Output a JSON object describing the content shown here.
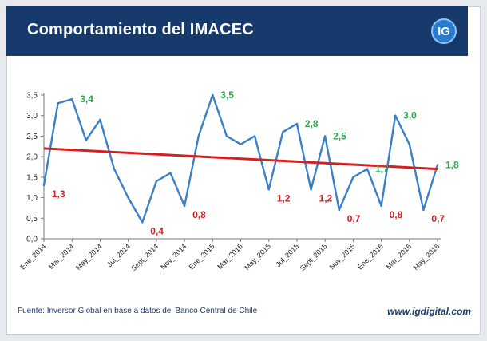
{
  "header": {
    "title": "Comportamiento del IMACEC",
    "logo_text": "IG"
  },
  "footer": {
    "source": "Fuente: Inversor Global en base a datos del Banco Central de Chile",
    "url": "www.igdigital.com"
  },
  "colors": {
    "line": "#3a80c8",
    "trend": "#d42020",
    "label_high": "#2aa84a",
    "label_low": "#d42020"
  },
  "chart_data": {
    "type": "line",
    "ylim": [
      0,
      3.5
    ],
    "yticks": [
      "0,0",
      "0,5",
      "1,0",
      "1,5",
      "2,0",
      "2,5",
      "3,0",
      "3,5"
    ],
    "xticks": [
      {
        "i": 0,
        "label": "Ene_2014"
      },
      {
        "i": 2,
        "label": "Mar_2014"
      },
      {
        "i": 4,
        "label": "May_2014"
      },
      {
        "i": 6,
        "label": "Jul_2014"
      },
      {
        "i": 8,
        "label": "Sept_2014"
      },
      {
        "i": 10,
        "label": "Nov_2014"
      },
      {
        "i": 12,
        "label": "Ene_2015"
      },
      {
        "i": 14,
        "label": "Mar_2015"
      },
      {
        "i": 16,
        "label": "May_2015"
      },
      {
        "i": 18,
        "label": "Jul_2015"
      },
      {
        "i": 20,
        "label": "Sept_2015"
      },
      {
        "i": 22,
        "label": "Nov_2015"
      },
      {
        "i": 24,
        "label": "Ene_2016"
      },
      {
        "i": 26,
        "label": "Mar_2016"
      },
      {
        "i": 28,
        "label": "May_2016"
      }
    ],
    "values": [
      1.3,
      3.3,
      3.4,
      2.4,
      2.9,
      1.7,
      1.0,
      0.4,
      1.4,
      1.6,
      0.8,
      2.5,
      3.5,
      2.5,
      2.3,
      2.5,
      1.2,
      2.6,
      2.8,
      1.2,
      2.5,
      0.7,
      1.5,
      1.7,
      0.8,
      3.0,
      2.3,
      0.7,
      1.8
    ],
    "trend": [
      2.2,
      1.7
    ],
    "annotations": [
      {
        "i": 0,
        "text": "1,3",
        "kind": "low"
      },
      {
        "i": 2,
        "text": "3,4",
        "kind": "high"
      },
      {
        "i": 7,
        "text": "0,4",
        "kind": "low"
      },
      {
        "i": 10,
        "text": "0,8",
        "kind": "low"
      },
      {
        "i": 12,
        "text": "3,5",
        "kind": "high"
      },
      {
        "i": 16,
        "text": "1,2",
        "kind": "low"
      },
      {
        "i": 18,
        "text": "2,8",
        "kind": "high"
      },
      {
        "i": 19,
        "text": "1,2",
        "kind": "low"
      },
      {
        "i": 20,
        "text": "2,5",
        "kind": "high"
      },
      {
        "i": 21,
        "text": "0,7",
        "kind": "low"
      },
      {
        "i": 23,
        "text": "1,7",
        "kind": "high"
      },
      {
        "i": 24,
        "text": "0,8",
        "kind": "low"
      },
      {
        "i": 25,
        "text": "3,0",
        "kind": "high"
      },
      {
        "i": 27,
        "text": "0,7",
        "kind": "low"
      },
      {
        "i": 28,
        "text": "1,8",
        "kind": "high"
      }
    ]
  }
}
